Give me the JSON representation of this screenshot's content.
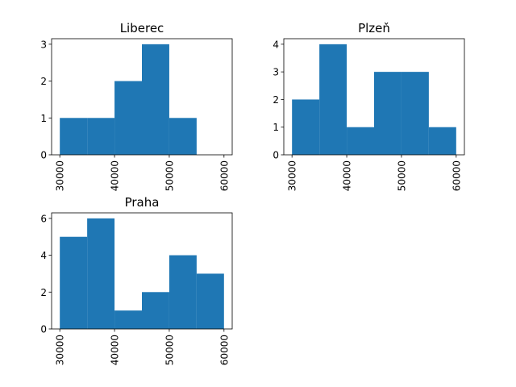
{
  "chart_data": [
    {
      "type": "bar",
      "title": "Liberec",
      "xlabel": "",
      "ylabel": "",
      "bin_edges": [
        30000,
        35000,
        40000,
        45000,
        50000,
        55000,
        60000
      ],
      "values": [
        1,
        1,
        2,
        3,
        1,
        0
      ],
      "xlim": [
        28500,
        61500
      ],
      "ylim": [
        0,
        3.15
      ],
      "xticks": [
        "30000",
        "40000",
        "50000",
        "60000"
      ],
      "yticks": [
        "0",
        "1",
        "2",
        "3"
      ],
      "grid": false,
      "bar_color": "#1f77b4"
    },
    {
      "type": "bar",
      "title": "Plzeň",
      "xlabel": "",
      "ylabel": "",
      "bin_edges": [
        30000,
        35000,
        40000,
        45000,
        50000,
        55000,
        60000
      ],
      "values": [
        2,
        4,
        1,
        3,
        3,
        1
      ],
      "xlim": [
        28500,
        61500
      ],
      "ylim": [
        0,
        4.2
      ],
      "xticks": [
        "30000",
        "40000",
        "50000",
        "60000"
      ],
      "yticks": [
        "0",
        "1",
        "2",
        "3",
        "4"
      ],
      "grid": false,
      "bar_color": "#1f77b4"
    },
    {
      "type": "bar",
      "title": "Praha",
      "xlabel": "",
      "ylabel": "",
      "bin_edges": [
        30000,
        35000,
        40000,
        45000,
        50000,
        55000,
        60000
      ],
      "values": [
        5,
        6,
        1,
        2,
        4,
        3
      ],
      "xlim": [
        28500,
        61500
      ],
      "ylim": [
        0,
        6.3
      ],
      "xticks": [
        "30000",
        "40000",
        "50000",
        "60000"
      ],
      "yticks": [
        "0",
        "2",
        "4",
        "6"
      ],
      "grid": false,
      "bar_color": "#1f77b4"
    }
  ]
}
